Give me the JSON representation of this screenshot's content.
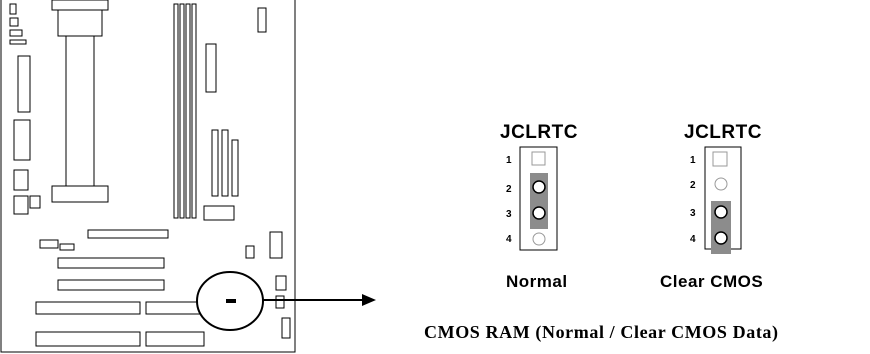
{
  "diagram": {
    "jumper_left": {
      "title": "JCLRTC",
      "pins": [
        "1",
        "2",
        "3",
        "4"
      ],
      "shorted_pins": [
        2,
        3
      ],
      "setting_label": "Normal"
    },
    "jumper_right": {
      "title": "JCLRTC",
      "pins": [
        "1",
        "2",
        "3",
        "4"
      ],
      "shorted_pins": [
        3,
        4
      ],
      "setting_label": "Clear CMOS"
    },
    "caption": "CMOS RAM (Normal / Clear CMOS Data)"
  }
}
